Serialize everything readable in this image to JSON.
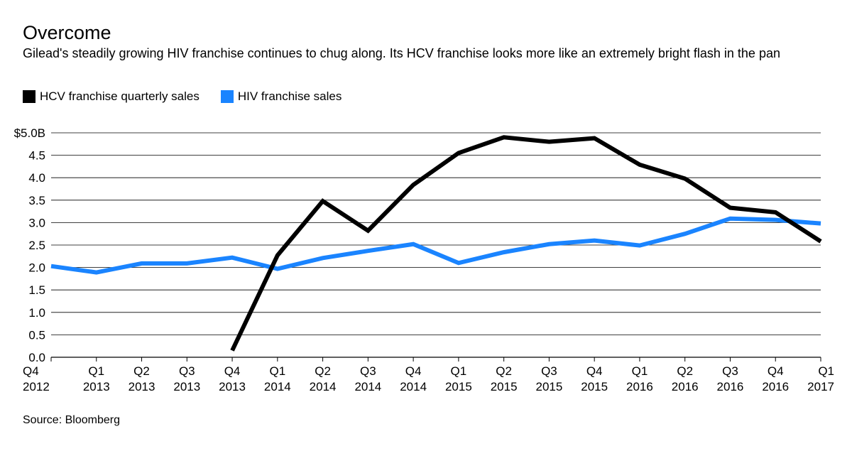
{
  "chart_data": {
    "type": "line",
    "title": "Overcome",
    "subtitle": "Gilead's steadily growing HIV franchise continues to chug along. Its HCV franchise looks more like an extremely bright flash in the pan",
    "source": "Source: Bloomberg",
    "x_labels": [
      {
        "q": "Q4",
        "y": "2012"
      },
      {
        "q": "Q1",
        "y": "2013"
      },
      {
        "q": "Q2",
        "y": "2013"
      },
      {
        "q": "Q3",
        "y": "2013"
      },
      {
        "q": "Q4",
        "y": "2013"
      },
      {
        "q": "Q1",
        "y": "2014"
      },
      {
        "q": "Q2",
        "y": "2014"
      },
      {
        "q": "Q3",
        "y": "2014"
      },
      {
        "q": "Q4",
        "y": "2014"
      },
      {
        "q": "Q1",
        "y": "2015"
      },
      {
        "q": "Q2",
        "y": "2015"
      },
      {
        "q": "Q3",
        "y": "2015"
      },
      {
        "q": "Q4",
        "y": "2015"
      },
      {
        "q": "Q1",
        "y": "2016"
      },
      {
        "q": "Q2",
        "y": "2016"
      },
      {
        "q": "Q3",
        "y": "2016"
      },
      {
        "q": "Q4",
        "y": "2016"
      },
      {
        "q": "Q1",
        "y": "2017"
      }
    ],
    "y_ticks": [
      {
        "value": 0,
        "label": "0.0"
      },
      {
        "value": 0.5,
        "label": "0.5"
      },
      {
        "value": 1.0,
        "label": "1.0"
      },
      {
        "value": 1.5,
        "label": "1.5"
      },
      {
        "value": 2.0,
        "label": "2.0"
      },
      {
        "value": 2.5,
        "label": "2.5"
      },
      {
        "value": 3.0,
        "label": "3.0"
      },
      {
        "value": 3.5,
        "label": "3.5"
      },
      {
        "value": 4.0,
        "label": "4.0"
      },
      {
        "value": 4.5,
        "label": "4.5"
      },
      {
        "value": 5.0,
        "label": "$5.0B"
      }
    ],
    "ylim": [
      0,
      5.0
    ],
    "grid": true,
    "legend_position": "top-left",
    "series": [
      {
        "name": "HCV franchise quarterly sales",
        "color": "#000000",
        "values": [
          null,
          null,
          null,
          null,
          0.15,
          2.27,
          3.48,
          2.82,
          3.84,
          4.55,
          4.9,
          4.8,
          4.88,
          4.29,
          3.98,
          3.33,
          3.23,
          2.58
        ]
      },
      {
        "name": "HIV franchise sales",
        "color": "#1a84ff",
        "values": [
          2.03,
          1.89,
          2.09,
          2.09,
          2.22,
          1.97,
          2.21,
          2.37,
          2.52,
          2.1,
          2.34,
          2.52,
          2.6,
          2.49,
          2.75,
          3.09,
          3.06,
          2.98
        ]
      }
    ]
  }
}
